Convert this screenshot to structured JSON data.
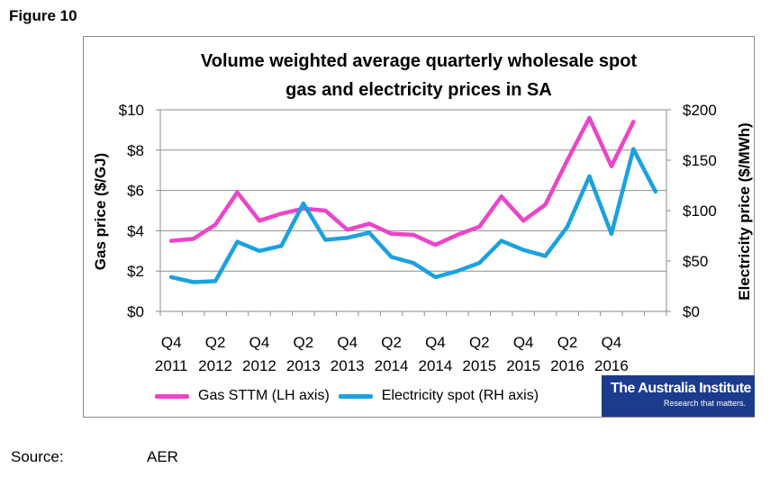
{
  "figure_label": "Figure 10",
  "source_label": "Source:",
  "source_value": "AER",
  "logo": {
    "name": "The Australia Institute",
    "tagline": "Research that matters."
  },
  "chart_data": {
    "type": "line",
    "title_line1": "Volume weighted average quarterly wholesale spot",
    "title_line2": "gas and electricity prices in SA",
    "ylabel_left": "Gas price ($/GJ)",
    "ylabel_right": "Electricity price ($/MWh)",
    "ylim_left": [
      0,
      10
    ],
    "ylim_right": [
      0,
      200
    ],
    "yticks_left": [
      "$0",
      "$2",
      "$4",
      "$6",
      "$8",
      "$10"
    ],
    "yticks_right": [
      "$0",
      "$50",
      "$100",
      "$150",
      "$200"
    ],
    "x_tick_labels": [
      {
        "q": "Q4",
        "y": "2011"
      },
      {
        "q": "Q2",
        "y": "2012"
      },
      {
        "q": "Q4",
        "y": "2012"
      },
      {
        "q": "Q2",
        "y": "2013"
      },
      {
        "q": "Q4",
        "y": "2013"
      },
      {
        "q": "Q2",
        "y": "2014"
      },
      {
        "q": "Q4",
        "y": "2014"
      },
      {
        "q": "Q2",
        "y": "2015"
      },
      {
        "q": "Q4",
        "y": "2015"
      },
      {
        "q": "Q2",
        "y": "2016"
      },
      {
        "q": "Q4",
        "y": "2016"
      }
    ],
    "categories": [
      "Q4 2011",
      "Q1 2012",
      "Q2 2012",
      "Q3 2012",
      "Q4 2012",
      "Q1 2013",
      "Q2 2013",
      "Q3 2013",
      "Q4 2013",
      "Q1 2014",
      "Q2 2014",
      "Q3 2014",
      "Q4 2014",
      "Q1 2015",
      "Q2 2015",
      "Q3 2015",
      "Q4 2015",
      "Q1 2016",
      "Q2 2016",
      "Q3 2016",
      "Q4 2016",
      "Q1 2017",
      "Q2 2017"
    ],
    "series": [
      {
        "name": "Gas STTM (LH axis)",
        "axis": "left",
        "color": "#ec45c8",
        "values": [
          3.5,
          3.6,
          4.3,
          5.9,
          4.5,
          4.85,
          5.1,
          5.0,
          4.05,
          4.35,
          3.85,
          3.8,
          3.3,
          3.8,
          4.2,
          5.7,
          4.5,
          5.3,
          7.5,
          9.6,
          7.2,
          9.4,
          null
        ]
      },
      {
        "name": "Electricity spot (RH axis)",
        "axis": "right",
        "color": "#1ba1e2",
        "values": [
          34,
          29,
          30,
          69,
          60,
          65,
          107,
          71,
          73,
          78,
          54,
          48,
          34,
          40,
          48,
          70,
          61,
          55,
          84,
          134,
          77,
          161,
          119
        ]
      }
    ]
  }
}
